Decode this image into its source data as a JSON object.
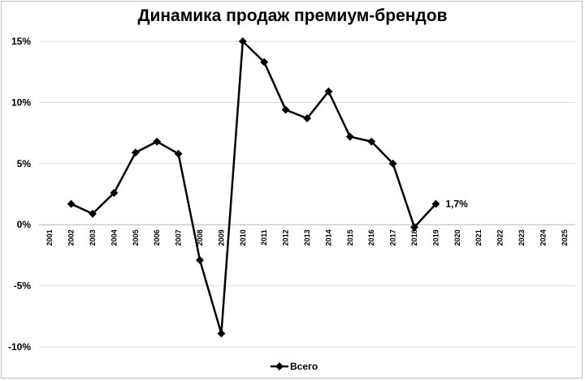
{
  "chart_data": {
    "type": "line",
    "title": "Динамика продаж премиум-брендов",
    "xlabel": "",
    "ylabel": "",
    "categories": [
      "2001",
      "2002",
      "2003",
      "2004",
      "2005",
      "2006",
      "2007",
      "2008",
      "2009",
      "2010",
      "2011",
      "2012",
      "2013",
      "2014",
      "2015",
      "2016",
      "2017",
      "2018",
      "2019",
      "2020",
      "2021",
      "2022",
      "2023",
      "2024",
      "2025"
    ],
    "series": [
      {
        "name": "Всего",
        "color": "#000000",
        "values": [
          null,
          1.7,
          0.9,
          2.6,
          5.9,
          6.8,
          5.8,
          -2.9,
          -8.9,
          15.0,
          13.3,
          9.4,
          8.7,
          10.9,
          7.2,
          6.8,
          5.0,
          -0.2,
          1.7,
          null,
          null,
          null,
          null,
          null,
          null
        ]
      }
    ],
    "ylim": [
      -10,
      15
    ],
    "yticks": [
      15,
      10,
      5,
      0,
      -5,
      -10
    ],
    "ytick_labels": [
      "15%",
      "10%",
      "5%",
      "0%",
      "-5%",
      "-10%"
    ],
    "grid": true,
    "legend": "bottom",
    "data_label": {
      "category": "2019",
      "text": "1,7%"
    }
  }
}
